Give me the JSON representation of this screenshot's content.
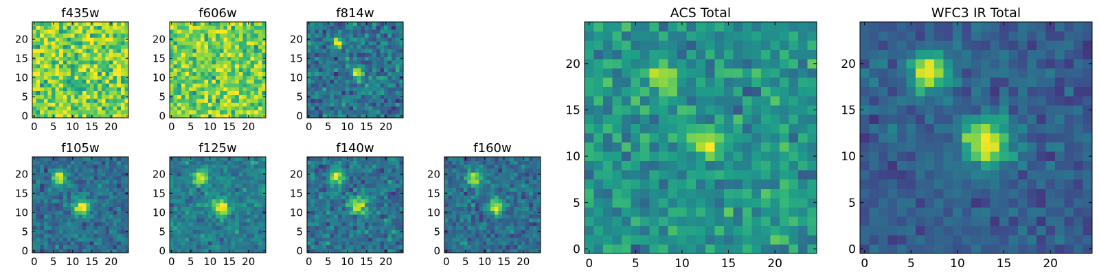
{
  "colors": {
    "colormap": "viridis",
    "viridis_stops": [
      "#440154",
      "#482878",
      "#3e4989",
      "#31688e",
      "#26828e",
      "#1f9e89",
      "#35b779",
      "#6ece58",
      "#b5de2b",
      "#fde725"
    ],
    "frame": "#000000",
    "background": "#ffffff"
  },
  "chart_data": [
    {
      "type": "heatmap",
      "title": "f435w",
      "grid": {
        "cols": 25,
        "rows": 25
      },
      "xlim": [
        0,
        24
      ],
      "ylim": [
        0,
        24
      ],
      "xticks": [
        "0",
        "5",
        "10",
        "15",
        "20"
      ],
      "yticks": [
        "0",
        "5",
        "10",
        "15",
        "20"
      ],
      "base_level": 0.8,
      "noise": 0.18,
      "sources": []
    },
    {
      "type": "heatmap",
      "title": "f606w",
      "grid": {
        "cols": 25,
        "rows": 25
      },
      "xlim": [
        0,
        24
      ],
      "ylim": [
        0,
        24
      ],
      "xticks": [
        "0",
        "5",
        "10",
        "15",
        "20"
      ],
      "yticks": [
        "0",
        "5",
        "10",
        "15",
        "20"
      ],
      "base_level": 0.78,
      "noise": 0.17,
      "sources": [
        {
          "x": 12.5,
          "y": 11.5,
          "peak": 0.2,
          "width": 1.0
        }
      ]
    },
    {
      "type": "heatmap",
      "title": "f814w",
      "grid": {
        "cols": 25,
        "rows": 25
      },
      "xlim": [
        0,
        24
      ],
      "ylim": [
        0,
        24
      ],
      "xticks": [
        "0",
        "5",
        "10",
        "15",
        "20"
      ],
      "yticks": [
        "0",
        "5",
        "10",
        "15",
        "20"
      ],
      "base_level": 0.38,
      "noise": 0.13,
      "sources": [
        {
          "x": 7.5,
          "y": 19,
          "peak": 0.6,
          "width": 1.0
        },
        {
          "x": 12.5,
          "y": 11.5,
          "peak": 0.6,
          "width": 1.0
        }
      ]
    },
    {
      "type": "heatmap",
      "title": "f105w",
      "grid": {
        "cols": 25,
        "rows": 25
      },
      "xlim": [
        0,
        24
      ],
      "ylim": [
        0,
        24
      ],
      "xticks": [
        "0",
        "5",
        "10",
        "15",
        "20"
      ],
      "yticks": [
        "0",
        "5",
        "10",
        "15",
        "20"
      ],
      "base_level": 0.36,
      "noise": 0.1,
      "sources": [
        {
          "x": 6.5,
          "y": 19,
          "peak": 0.6,
          "width": 1.3
        },
        {
          "x": 12.5,
          "y": 11.5,
          "peak": 0.65,
          "width": 1.5
        }
      ]
    },
    {
      "type": "heatmap",
      "title": "f125w",
      "grid": {
        "cols": 25,
        "rows": 25
      },
      "xlim": [
        0,
        24
      ],
      "ylim": [
        0,
        24
      ],
      "xticks": [
        "0",
        "5",
        "10",
        "15",
        "20"
      ],
      "yticks": [
        "0",
        "5",
        "10",
        "15",
        "20"
      ],
      "base_level": 0.42,
      "noise": 0.1,
      "sources": [
        {
          "x": 7.5,
          "y": 19,
          "peak": 0.55,
          "width": 1.3
        },
        {
          "x": 13,
          "y": 11.5,
          "peak": 0.6,
          "width": 1.6
        }
      ]
    },
    {
      "type": "heatmap",
      "title": "f140w",
      "grid": {
        "cols": 25,
        "rows": 25
      },
      "xlim": [
        0,
        24
      ],
      "ylim": [
        0,
        24
      ],
      "xticks": [
        "0",
        "5",
        "10",
        "15",
        "20"
      ],
      "yticks": [
        "0",
        "5",
        "10",
        "15",
        "20"
      ],
      "base_level": 0.38,
      "noise": 0.11,
      "sources": [
        {
          "x": 7,
          "y": 19.5,
          "peak": 0.58,
          "width": 1.3
        },
        {
          "x": 12.5,
          "y": 12,
          "peak": 0.6,
          "width": 1.6
        }
      ]
    },
    {
      "type": "heatmap",
      "title": "f160w",
      "grid": {
        "cols": 25,
        "rows": 25
      },
      "xlim": [
        0,
        24
      ],
      "ylim": [
        0,
        24
      ],
      "xticks": [
        "0",
        "5",
        "10",
        "15",
        "20"
      ],
      "yticks": [
        "0",
        "5",
        "10",
        "15",
        "20"
      ],
      "base_level": 0.36,
      "noise": 0.1,
      "sources": [
        {
          "x": 7,
          "y": 19,
          "peak": 0.6,
          "width": 1.3
        },
        {
          "x": 13,
          "y": 11.5,
          "peak": 0.6,
          "width": 1.5
        }
      ]
    },
    {
      "type": "heatmap",
      "title": "ACS Total",
      "grid": {
        "cols": 25,
        "rows": 25
      },
      "xlim": [
        0,
        24
      ],
      "ylim": [
        0,
        24
      ],
      "xticks": [
        "0",
        "5",
        "10",
        "15",
        "20"
      ],
      "yticks": [
        "0",
        "5",
        "10",
        "15",
        "20"
      ],
      "base_level": 0.52,
      "noise": 0.12,
      "sources": [
        {
          "x": 7.5,
          "y": 18.5,
          "peak": 0.55,
          "width": 0.8
        },
        {
          "x": 12.5,
          "y": 11.5,
          "peak": 0.55,
          "width": 0.8
        }
      ]
    },
    {
      "type": "heatmap",
      "title": "WFC3 IR Total",
      "grid": {
        "cols": 25,
        "rows": 25
      },
      "xlim": [
        0,
        24
      ],
      "ylim": [
        0,
        24
      ],
      "xticks": [
        "0",
        "5",
        "10",
        "15",
        "20"
      ],
      "yticks": [
        "0",
        "5",
        "10",
        "15",
        "20"
      ],
      "base_level": 0.3,
      "noise": 0.08,
      "sources": [
        {
          "x": 7,
          "y": 19,
          "peak": 0.7,
          "width": 1.5
        },
        {
          "x": 13,
          "y": 11.5,
          "peak": 0.7,
          "width": 1.8
        }
      ]
    }
  ]
}
